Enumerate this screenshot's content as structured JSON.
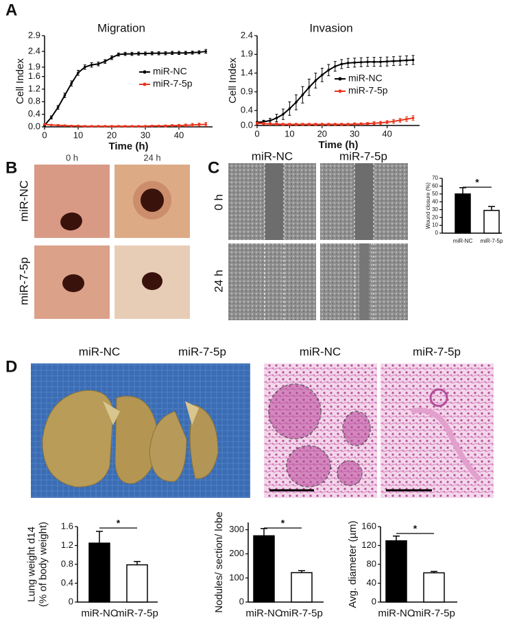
{
  "panel_labels": [
    "A",
    "B",
    "C",
    "D"
  ],
  "panel_b": {
    "columns": [
      "0 h",
      "24 h"
    ],
    "rows": [
      "miR-NC",
      "miR-7-5p"
    ]
  },
  "panel_c": {
    "columns": [
      "miR-NC",
      "miR-7-5p"
    ],
    "rows": [
      "0 h",
      "24 h"
    ]
  },
  "panel_d": {
    "photo_labels": [
      "miR-NC",
      "miR-7-5p"
    ],
    "histology_labels": [
      "miR-NC",
      "miR-7-5p"
    ]
  },
  "chart_data": [
    {
      "type": "line",
      "title": "Migration",
      "xlabel": "Time (h)",
      "ylabel": "Cell Index",
      "x": [
        0,
        2,
        4,
        6,
        8,
        10,
        12,
        14,
        16,
        18,
        20,
        22,
        24,
        26,
        28,
        30,
        32,
        34,
        36,
        38,
        40,
        42,
        44,
        46,
        48
      ],
      "series": [
        {
          "name": "miR-NC",
          "color": "#000000",
          "values": [
            0.05,
            0.3,
            0.62,
            1.0,
            1.38,
            1.72,
            1.9,
            1.97,
            2.0,
            2.08,
            2.2,
            2.3,
            2.32,
            2.32,
            2.33,
            2.33,
            2.34,
            2.34,
            2.34,
            2.35,
            2.35,
            2.35,
            2.36,
            2.37,
            2.4
          ],
          "errors": [
            0.02,
            0.05,
            0.06,
            0.07,
            0.08,
            0.08,
            0.07,
            0.07,
            0.06,
            0.06,
            0.06,
            0.05,
            0.05,
            0.05,
            0.05,
            0.05,
            0.05,
            0.05,
            0.05,
            0.05,
            0.05,
            0.05,
            0.05,
            0.05,
            0.06
          ]
        },
        {
          "name": "miR-7-5p",
          "color": "#e8341c",
          "values": [
            0.08,
            0.06,
            0.05,
            0.04,
            0.03,
            0.03,
            0.02,
            0.02,
            0.02,
            0.02,
            0.02,
            0.02,
            0.02,
            0.02,
            0.02,
            0.02,
            0.03,
            0.03,
            0.03,
            0.04,
            0.04,
            0.05,
            0.06,
            0.07,
            0.08
          ],
          "errors": [
            0.02,
            0.02,
            0.02,
            0.02,
            0.02,
            0.02,
            0.02,
            0.02,
            0.02,
            0.02,
            0.02,
            0.02,
            0.02,
            0.02,
            0.02,
            0.02,
            0.02,
            0.02,
            0.03,
            0.03,
            0.04,
            0.04,
            0.05,
            0.05,
            0.06
          ]
        }
      ],
      "xlim": [
        0,
        50
      ],
      "xticks": [
        0,
        10,
        20,
        30,
        40
      ],
      "ylim": [
        0,
        2.9
      ],
      "yticks": [
        {
          "value": 0,
          "label": "0.0"
        },
        0.4,
        0.8,
        1.2,
        1.6,
        1.9,
        2.4,
        2.9
      ]
    },
    {
      "type": "line",
      "title": "Invasion",
      "xlabel": "Time (h)",
      "ylabel": "Cell Index",
      "x": [
        0,
        2,
        4,
        6,
        8,
        10,
        12,
        14,
        16,
        18,
        20,
        22,
        24,
        26,
        28,
        30,
        32,
        34,
        36,
        38,
        40,
        42,
        44,
        46,
        48
      ],
      "series": [
        {
          "name": "miR-NC",
          "color": "#000000",
          "values": [
            0.08,
            0.1,
            0.13,
            0.2,
            0.3,
            0.45,
            0.62,
            0.82,
            1.02,
            1.2,
            1.35,
            1.48,
            1.58,
            1.64,
            1.67,
            1.68,
            1.69,
            1.7,
            1.7,
            1.7,
            1.71,
            1.72,
            1.73,
            1.74,
            1.75
          ],
          "errors": [
            0.03,
            0.04,
            0.06,
            0.1,
            0.14,
            0.18,
            0.2,
            0.22,
            0.22,
            0.2,
            0.18,
            0.15,
            0.13,
            0.12,
            0.12,
            0.12,
            0.12,
            0.12,
            0.12,
            0.12,
            0.12,
            0.12,
            0.12,
            0.12,
            0.12
          ]
        },
        {
          "name": "miR-7-5p",
          "color": "#e8341c",
          "values": [
            0.06,
            0.05,
            0.04,
            0.04,
            0.03,
            0.03,
            0.03,
            0.03,
            0.03,
            0.03,
            0.03,
            0.03,
            0.03,
            0.03,
            0.03,
            0.04,
            0.04,
            0.05,
            0.06,
            0.07,
            0.09,
            0.11,
            0.14,
            0.17,
            0.2
          ],
          "errors": [
            0.03,
            0.03,
            0.03,
            0.03,
            0.03,
            0.03,
            0.03,
            0.03,
            0.03,
            0.03,
            0.03,
            0.03,
            0.03,
            0.03,
            0.03,
            0.03,
            0.03,
            0.03,
            0.04,
            0.04,
            0.04,
            0.05,
            0.05,
            0.06,
            0.06
          ]
        }
      ],
      "xlim": [
        0,
        50
      ],
      "xticks": [
        0,
        10,
        20,
        30,
        40
      ],
      "ylim": [
        0,
        2.4
      ],
      "yticks": [
        {
          "value": 0,
          "label": "0.0"
        },
        0.4,
        0.9,
        1.4,
        1.9,
        2.4
      ]
    },
    {
      "type": "bar",
      "ylabel": [
        "Wound closure (%)"
      ],
      "categories": [
        "miR-NC",
        "miR-7-5p"
      ],
      "values": [
        50,
        29
      ],
      "errors": [
        8,
        5
      ],
      "colors": [
        "#000000",
        "#ffffff"
      ],
      "significance": "*",
      "ylim": [
        0,
        70
      ],
      "yticks": [
        0,
        10,
        20,
        30,
        40,
        50,
        60,
        70
      ]
    },
    {
      "type": "bar",
      "ylabel": [
        "Lung weight d14",
        "(% of body weight)"
      ],
      "categories": [
        "miR-NC",
        "miR-7-5p"
      ],
      "values": [
        1.25,
        0.79
      ],
      "errors": [
        0.25,
        0.07
      ],
      "colors": [
        "#000000",
        "#ffffff"
      ],
      "significance": "*",
      "ylim": [
        0,
        1.6
      ],
      "yticks": [
        0,
        0.4,
        0.8,
        1.2,
        1.6
      ]
    },
    {
      "type": "bar",
      "ylabel": [
        "Nodules/ section/ lobe"
      ],
      "categories": [
        "miR-NC",
        "miR-7-5p"
      ],
      "values": [
        275,
        122
      ],
      "errors": [
        30,
        8
      ],
      "colors": [
        "#000000",
        "#ffffff"
      ],
      "significance": "*",
      "ylim": [
        0,
        330
      ],
      "yticks": [
        0,
        100,
        200,
        300
      ]
    },
    {
      "type": "bar",
      "ylabel": [
        "Avg. diameter (µm)"
      ],
      "categories": [
        "miR-NC",
        "miR-7-5p"
      ],
      "values": [
        130,
        62
      ],
      "errors": [
        10,
        3
      ],
      "colors": [
        "#000000",
        "#ffffff"
      ],
      "significance": "*",
      "ylim": [
        0,
        160
      ],
      "yticks": [
        0,
        40,
        80,
        120,
        160
      ]
    }
  ]
}
